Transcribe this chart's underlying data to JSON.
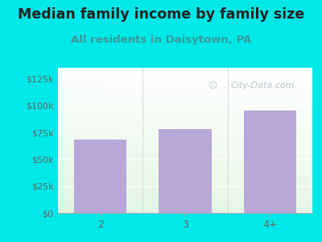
{
  "categories": [
    "2",
    "3",
    "4+"
  ],
  "values": [
    68000,
    78000,
    95000
  ],
  "bar_color": "#b8a8d8",
  "title": "Median family income by family size",
  "subtitle": "All residents in Daisytown, PA",
  "title_fontsize": 12.5,
  "subtitle_fontsize": 9.5,
  "title_color": "#222222",
  "subtitle_color": "#3a9a9a",
  "ylabel_ticks": [
    0,
    25000,
    50000,
    75000,
    100000,
    125000
  ],
  "tick_labels": [
    "$0",
    "$25k",
    "$50k",
    "$75k",
    "$100k",
    "$125k"
  ],
  "ylim": [
    0,
    135000
  ],
  "outer_bg": "#00e8e8",
  "tick_color": "#666666",
  "watermark": "City-Data.com",
  "watermark_color": "#b0b8c8"
}
